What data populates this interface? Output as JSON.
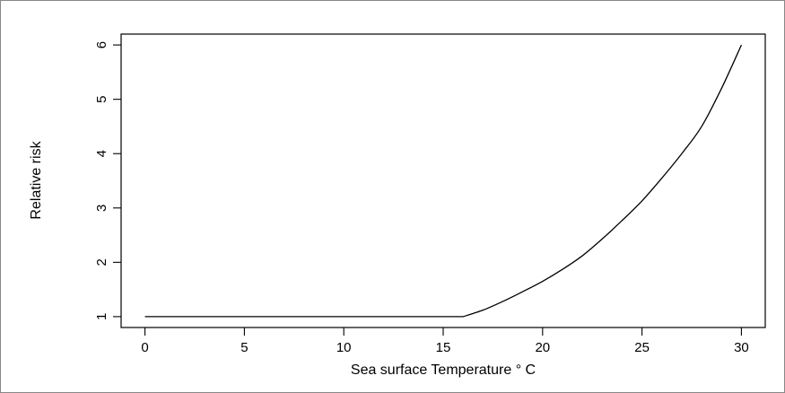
{
  "chart_data": {
    "type": "line",
    "title": "",
    "xlabel": "Sea surface Temperature ° C",
    "ylabel": "Relative risk",
    "xlim": [
      -1.2,
      31.2
    ],
    "ylim": [
      0.8,
      6.2
    ],
    "x_ticks": [
      0,
      5,
      10,
      15,
      20,
      25,
      30
    ],
    "y_ticks": [
      1,
      2,
      3,
      4,
      5,
      6
    ],
    "grid": false,
    "legend": "none",
    "series": [
      {
        "x": [
          0,
          16,
          17,
          18,
          19,
          20,
          21,
          22,
          23,
          24,
          25,
          26,
          27,
          28,
          29,
          30
        ],
        "y": [
          1,
          1,
          1.12,
          1.28,
          1.46,
          1.65,
          1.87,
          2.12,
          2.43,
          2.77,
          3.13,
          3.55,
          4.0,
          4.5,
          5.2,
          6.0
        ]
      }
    ]
  }
}
